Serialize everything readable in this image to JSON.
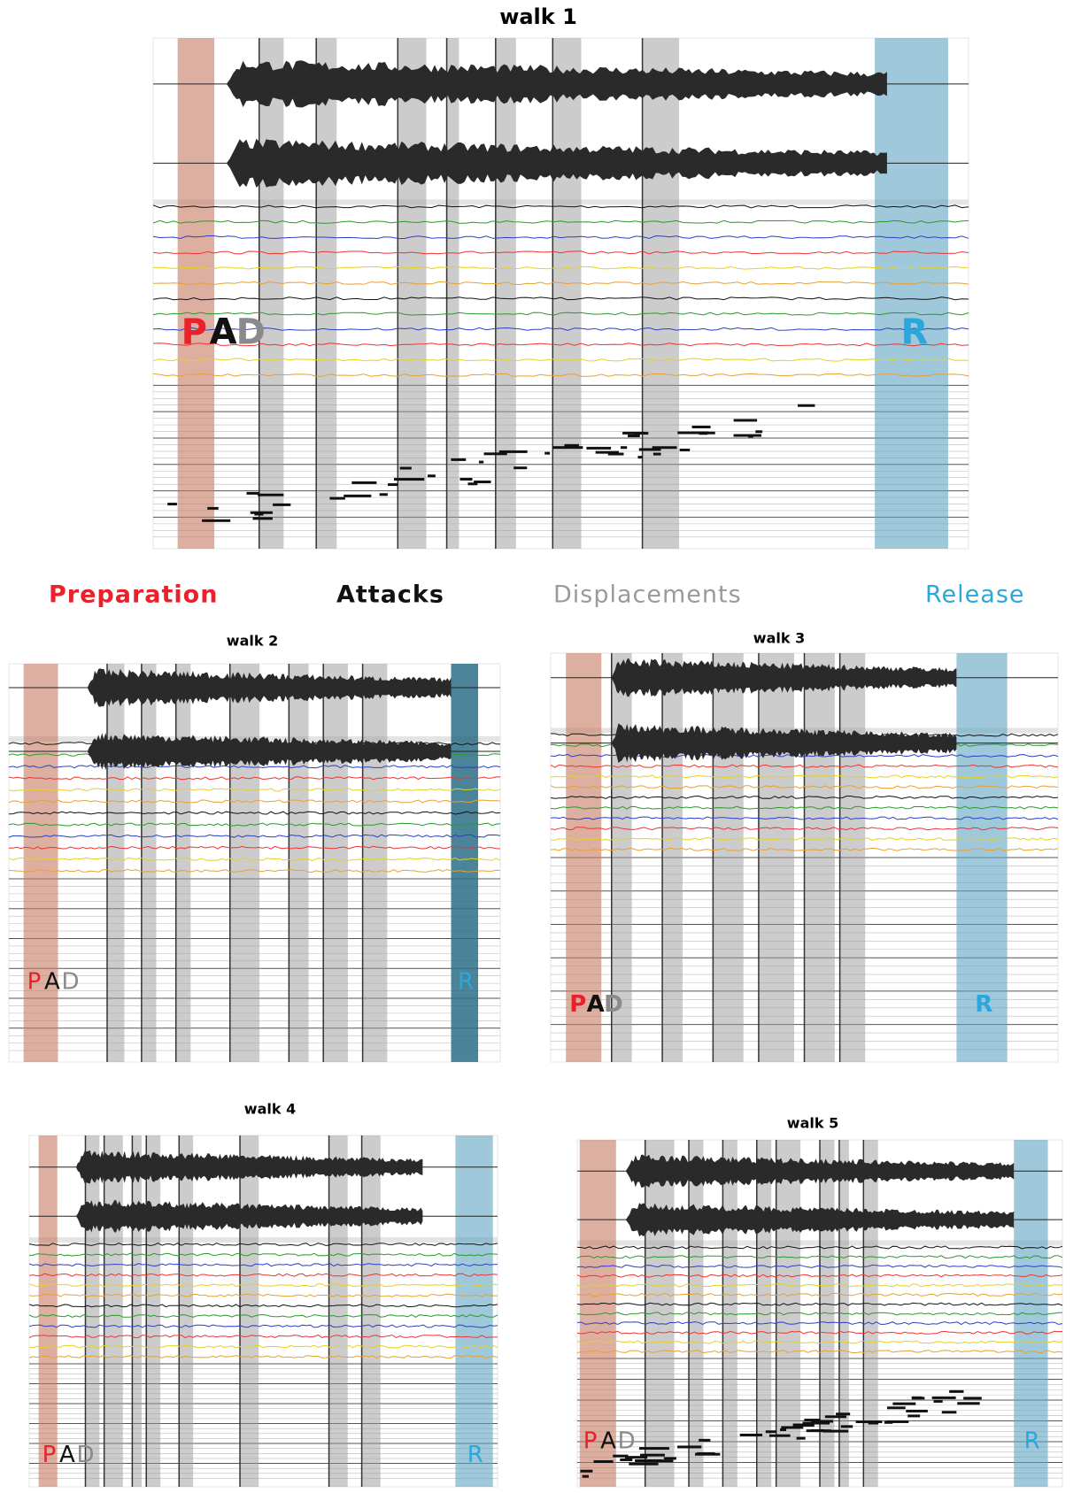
{
  "figure": {
    "panels": [
      {
        "title": "walk 1",
        "phases": [
          "P",
          "A",
          "D",
          "R"
        ]
      },
      {
        "title": "walk 2",
        "phases": [
          "P",
          "A",
          "D",
          "R"
        ]
      },
      {
        "title": "walk 3",
        "phases": [
          "P",
          "A",
          "D",
          "R"
        ]
      },
      {
        "title": "walk 4",
        "phases": [
          "P",
          "A",
          "D",
          "R"
        ]
      },
      {
        "title": "walk 5",
        "phases": [
          "P",
          "A",
          "D",
          "R"
        ]
      }
    ],
    "legend": [
      "Preparation",
      "Attacks",
      "Displacements",
      "Release"
    ]
  }
}
